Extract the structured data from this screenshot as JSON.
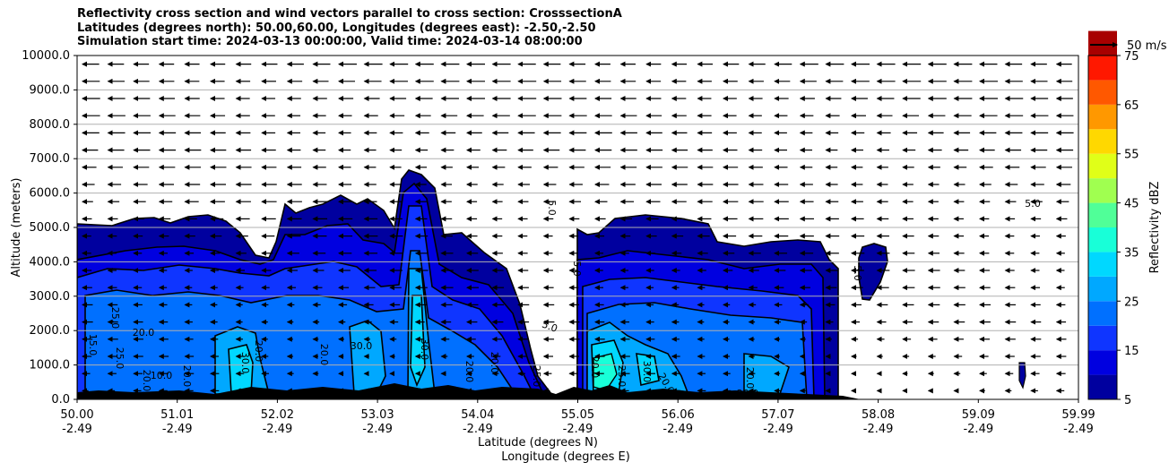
{
  "title_lines": [
    "Reflectivity cross section and wind vectors parallel to cross section: CrosssectionA",
    "Latitudes (degrees north): 50.00,60.00, Longitudes (degrees east): -2.50,-2.50",
    "Simulation start time: 2024-03-13 00:00:00, Valid time: 2024-03-14 08:00:00"
  ],
  "chart_data": {
    "type": "heatmap",
    "ylabel": "Altitude (meters)",
    "xlabel_lines": [
      "Latitude (degrees N)",
      "Longitude (degrees E)"
    ],
    "ylim": [
      0,
      10000
    ],
    "xlim": [
      50.0,
      59.99
    ],
    "y_ticks": [
      "0.0",
      "1000.0",
      "2000.0",
      "3000.0",
      "4000.0",
      "5000.0",
      "6000.0",
      "7000.0",
      "8000.0",
      "9000.0",
      "10000.0"
    ],
    "x_ticks": [
      {
        "lat": "50.00",
        "lon": "-2.49"
      },
      {
        "lat": "51.01",
        "lon": "-2.49"
      },
      {
        "lat": "52.02",
        "lon": "-2.49"
      },
      {
        "lat": "53.03",
        "lon": "-2.49"
      },
      {
        "lat": "54.04",
        "lon": "-2.49"
      },
      {
        "lat": "55.05",
        "lon": "-2.49"
      },
      {
        "lat": "56.06",
        "lon": "-2.49"
      },
      {
        "lat": "57.07",
        "lon": "-2.49"
      },
      {
        "lat": "58.08",
        "lon": "-2.49"
      },
      {
        "lat": "59.09",
        "lon": "-2.49"
      },
      {
        "lat": "59.99",
        "lon": "-2.49"
      }
    ],
    "grid": "horizontal",
    "colorbar": {
      "label": "Reflectivity dBZ",
      "levels": [
        5,
        10,
        15,
        20,
        25,
        30,
        35,
        40,
        45,
        50,
        55,
        60,
        65,
        70,
        75
      ],
      "tick_labels": [
        "5",
        "15",
        "25",
        "35",
        "45",
        "55",
        "65",
        "75"
      ],
      "colors": [
        "#00009f",
        "#0000e0",
        "#0f35ff",
        "#0070ff",
        "#00a8ff",
        "#00d8ff",
        "#18ffd8",
        "#50ff98",
        "#a0ff50",
        "#e0ff18",
        "#ffd800",
        "#ff9800",
        "#ff5800",
        "#ff1800",
        "#a80000"
      ]
    },
    "wind_reference": "50 m/s",
    "wind_direction": "westward (toward decreasing latitude)",
    "contour_labels": [
      "5.0",
      "10.0",
      "15.0",
      "20.0",
      "25.0",
      "30.0"
    ],
    "terrain_color": "#000000"
  }
}
